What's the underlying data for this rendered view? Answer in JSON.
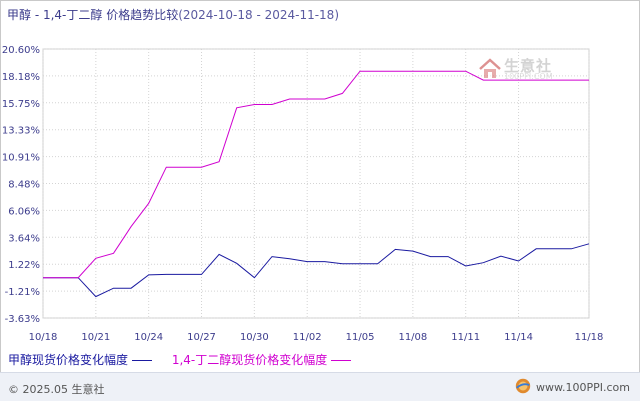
{
  "title": {
    "main": "甲醇 - 1,4-丁二醇 价格趋势比较",
    "range": "(2024-10-18 - 2024-11-18)"
  },
  "watermark": {
    "text": "生意社",
    "url": "100PPI.COM",
    "icon": "house-logo-icon"
  },
  "footer": {
    "copyright": "© 2025.05 生意社",
    "site": "www.100PPI.com",
    "icon": "globe-logo-icon"
  },
  "colors": {
    "series1": "#1a1aa0",
    "series2": "#d000d0",
    "grid": "#d4d4d4",
    "axis_text": "#3c3c8c"
  },
  "chart_data": {
    "type": "line",
    "yticks": [
      "20.60%",
      "18.18%",
      "15.75%",
      "13.33%",
      "10.91%",
      "8.48%",
      "6.06%",
      "3.64%",
      "1.22%",
      "-1.21%",
      "-3.63%"
    ],
    "ylim": [
      -3.63,
      20.6
    ],
    "xticks": [
      "10/18",
      "10/21",
      "10/24",
      "10/27",
      "10/30",
      "11/02",
      "11/05",
      "11/08",
      "11/11",
      "11/14",
      "11/18"
    ],
    "x": [
      "10/18",
      "10/19",
      "10/20",
      "10/21",
      "10/22",
      "10/23",
      "10/24",
      "10/25",
      "10/26",
      "10/27",
      "10/28",
      "10/29",
      "10/30",
      "10/31",
      "11/01",
      "11/02",
      "11/03",
      "11/04",
      "11/05",
      "11/06",
      "11/07",
      "11/08",
      "11/09",
      "11/10",
      "11/11",
      "11/12",
      "11/13",
      "11/14",
      "11/15",
      "11/16",
      "11/17",
      "11/18"
    ],
    "grid": true,
    "legend_position": "bottom-left",
    "series": [
      {
        "name": "甲醇现货价格变化幅度",
        "values": [
          0,
          0,
          0,
          -1.7,
          -0.95,
          -0.95,
          0.25,
          0.3,
          0.3,
          0.3,
          2.1,
          1.3,
          0,
          1.9,
          1.7,
          1.45,
          1.45,
          1.25,
          1.25,
          1.25,
          2.55,
          2.4,
          1.9,
          1.9,
          1.05,
          1.35,
          1.95,
          1.5,
          2.6,
          2.6,
          2.6,
          3.05
        ]
      },
      {
        "name": "1,4-丁二醇现货价格变化幅度",
        "values": [
          0,
          0,
          0,
          1.75,
          2.2,
          4.6,
          6.7,
          9.95,
          9.95,
          9.95,
          10.45,
          15.3,
          15.6,
          15.6,
          16.1,
          16.1,
          16.1,
          16.6,
          18.6,
          18.6,
          18.6,
          18.6,
          18.6,
          18.6,
          18.6,
          17.8,
          17.8,
          17.8,
          17.8,
          17.8,
          17.8,
          17.8
        ]
      }
    ]
  }
}
